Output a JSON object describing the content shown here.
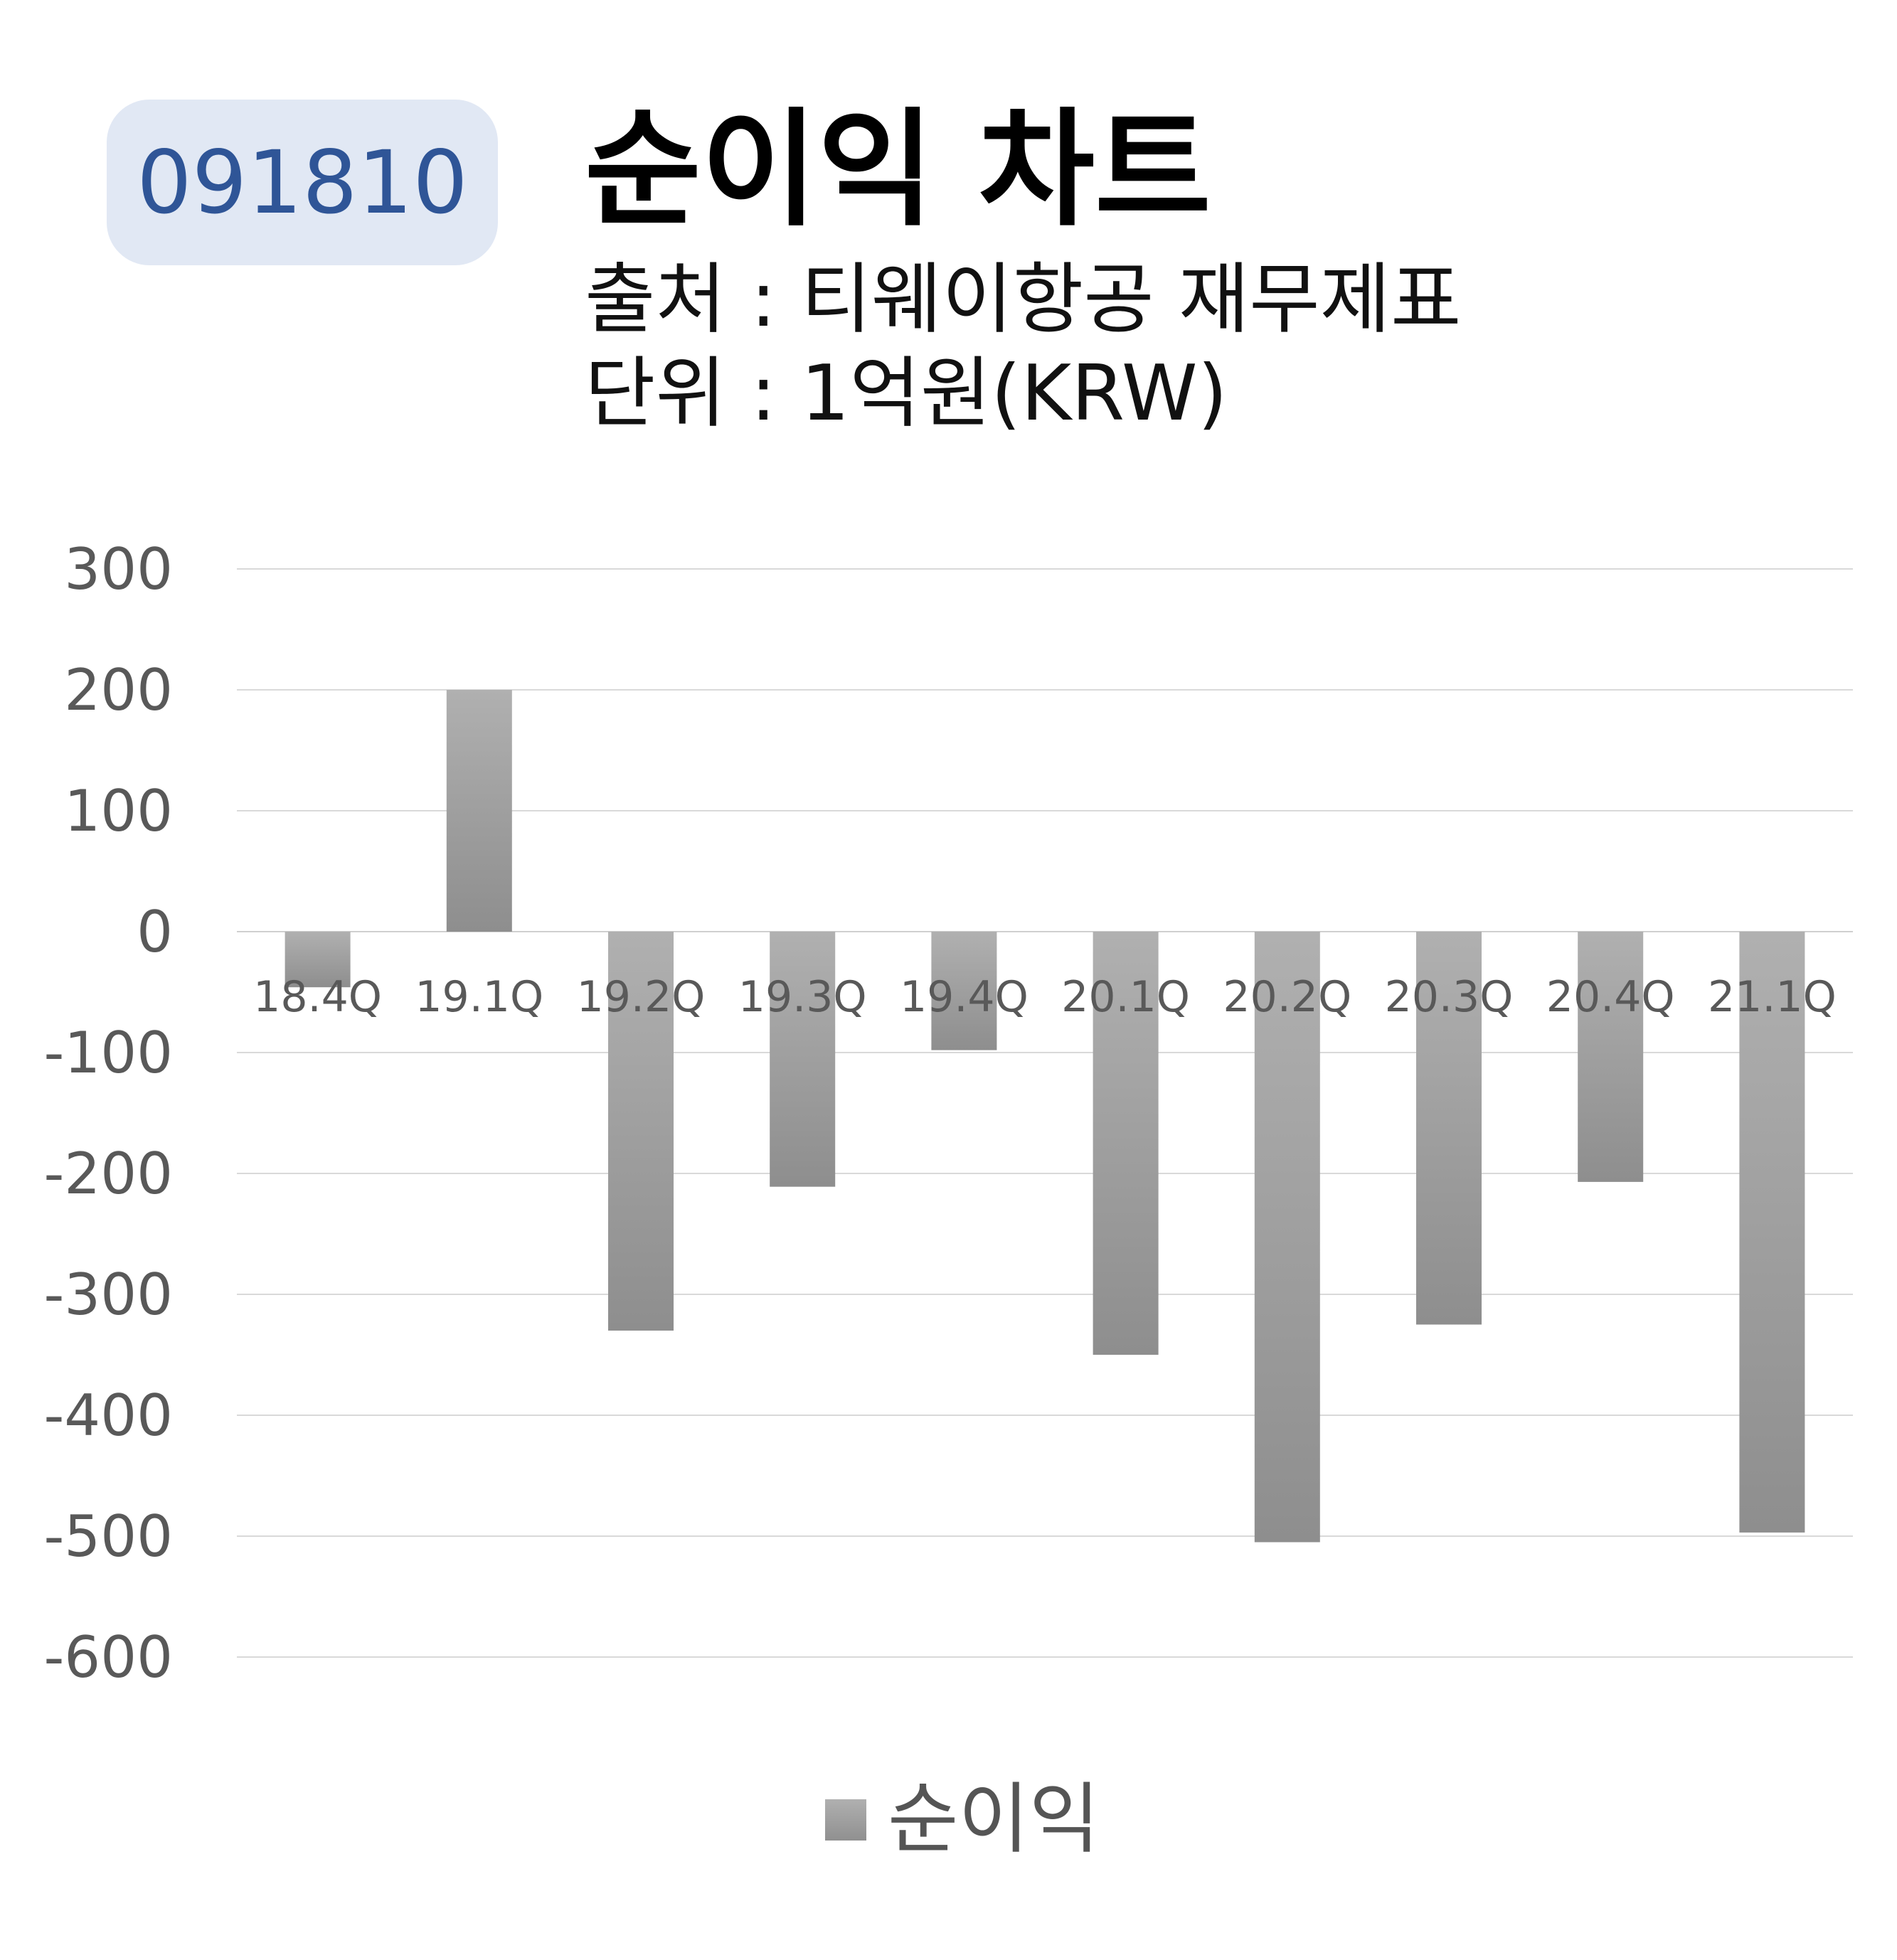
{
  "badge": {
    "code": "091810"
  },
  "header": {
    "title": "순이익 차트",
    "source": "출처 : 티웨이항공 재무제표",
    "unit": "단위 : 1억원(KRW)"
  },
  "legend": {
    "label": "순이익"
  },
  "colors": {
    "bar_top": "#b0b0b0",
    "bar_bottom": "#8e8e8e",
    "grid": "#d9d9d9",
    "axis_text": "#595959",
    "badge_bg": "#e1e8f4",
    "badge_text": "#2f5597"
  },
  "chart_data": {
    "type": "bar",
    "categories": [
      "18.4Q",
      "19.1Q",
      "19.2Q",
      "19.3Q",
      "19.4Q",
      "20.1Q",
      "20.2Q",
      "20.3Q",
      "20.4Q",
      "21.1Q"
    ],
    "series": [
      {
        "name": "순이익",
        "values": [
          -46,
          200,
          -330,
          -211,
          -98,
          -350,
          -505,
          -325,
          -207,
          -497
        ]
      }
    ],
    "ylim": [
      -600,
      300
    ],
    "yticks": [
      300,
      200,
      100,
      0,
      -100,
      -200,
      -300,
      -400,
      -500,
      -600
    ],
    "grid": true,
    "legend_position": "bottom"
  }
}
